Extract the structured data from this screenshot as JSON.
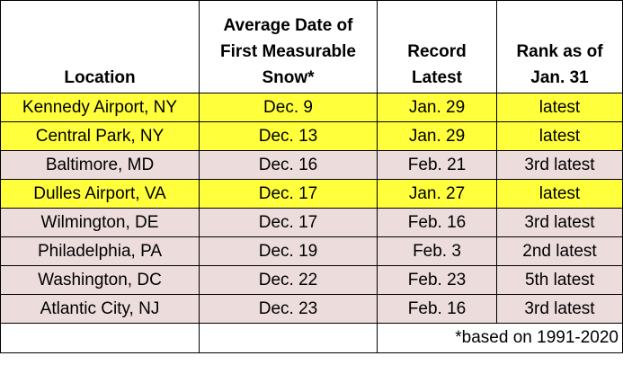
{
  "headers": {
    "location": "Location",
    "avg_date_lines": [
      "Average Date of",
      "First Measurable",
      "Snow*"
    ],
    "record_lines": [
      "Record",
      "Latest"
    ],
    "rank_lines": [
      "Rank as of",
      "Jan. 31"
    ]
  },
  "highlight_color": "#ffff3c",
  "row_color": "#ecdcdc",
  "rows": [
    {
      "location": "Kennedy Airport, NY",
      "avg_date": "Dec. 9",
      "record": "Jan. 29",
      "rank": "latest",
      "highlight": true
    },
    {
      "location": "Central Park, NY",
      "avg_date": "Dec. 13",
      "record": "Jan. 29",
      "rank": "latest",
      "highlight": true
    },
    {
      "location": "Baltimore, MD",
      "avg_date": "Dec. 16",
      "record": "Feb. 21",
      "rank": "3rd latest",
      "highlight": false
    },
    {
      "location": "Dulles Airport, VA",
      "avg_date": "Dec. 17",
      "record": "Jan. 27",
      "rank": "latest",
      "highlight": true
    },
    {
      "location": "Wilmington, DE",
      "avg_date": "Dec. 17",
      "record": "Feb. 16",
      "rank": "3rd latest",
      "highlight": false
    },
    {
      "location": "Philadelphia, PA",
      "avg_date": "Dec. 19",
      "record": "Feb. 3",
      "rank": "2nd latest",
      "highlight": false
    },
    {
      "location": "Washington, DC",
      "avg_date": "Dec. 22",
      "record": "Feb. 23",
      "rank": "5th latest",
      "highlight": false
    },
    {
      "location": "Atlantic City, NJ",
      "avg_date": "Dec. 23",
      "record": "Feb. 16",
      "rank": "3rd latest",
      "highlight": false
    }
  ],
  "footnote": "*based on 1991-2020"
}
